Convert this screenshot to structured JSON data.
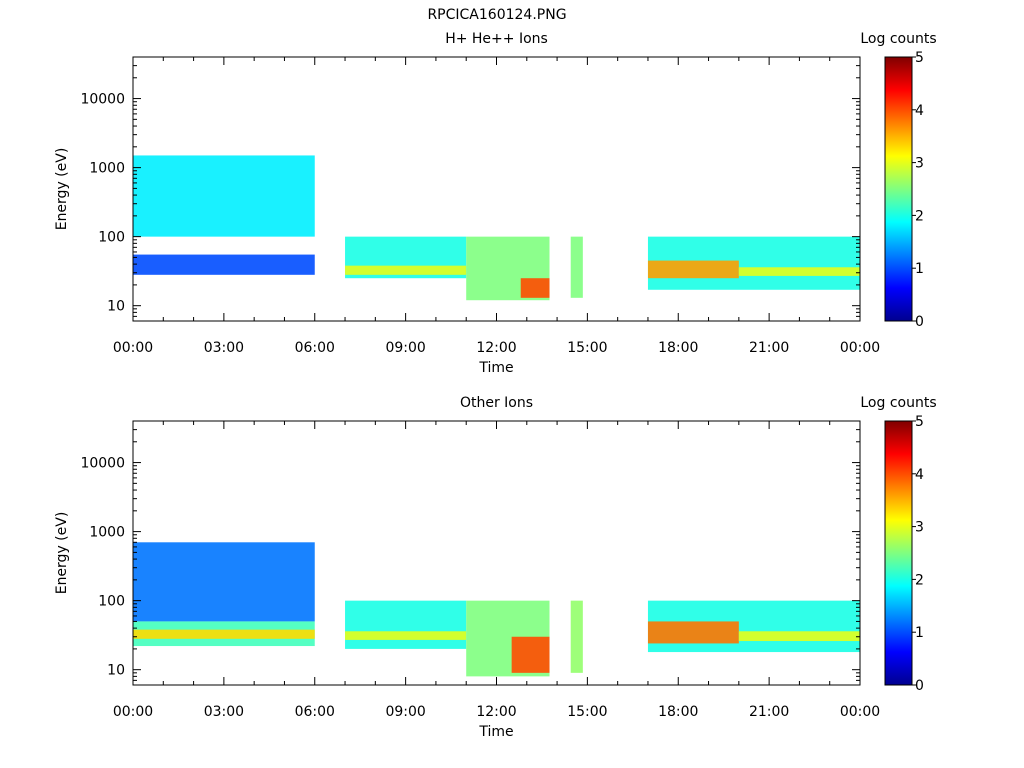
{
  "file_title": "RPCICA160124.PNG",
  "chart_data": [
    {
      "type": "heatmap",
      "title": "H+ He++ Ions",
      "xlabel": "Time",
      "ylabel": "Energy (eV)",
      "y_scale": "log",
      "ylim": [
        6,
        40000
      ],
      "xlim_hours": [
        0,
        24
      ],
      "x_ticks": [
        "00:00",
        "03:00",
        "06:00",
        "09:00",
        "12:00",
        "15:00",
        "18:00",
        "21:00",
        "00:00"
      ],
      "y_ticks": [
        "10",
        "100",
        "1000",
        "10000"
      ],
      "colorbar": {
        "label": "Log counts",
        "range": [
          0,
          5
        ],
        "ticks": [
          "0",
          "1",
          "2",
          "3",
          "4",
          "5"
        ]
      },
      "data_gaps_hours": [
        [
          6.0,
          7.0
        ],
        [
          13.75,
          14.45
        ],
        [
          14.85,
          17.0
        ]
      ],
      "blocks": [
        {
          "t_start": 0.0,
          "t_end": 6.0,
          "e_min": 100,
          "e_max": 1500,
          "level": 1.8
        },
        {
          "t_start": 0.0,
          "t_end": 6.0,
          "e_min": 28,
          "e_max": 55,
          "level": 1.0
        },
        {
          "t_start": 7.0,
          "t_end": 11.0,
          "e_min": 25,
          "e_max": 100,
          "level": 2.0
        },
        {
          "t_start": 7.0,
          "t_end": 11.0,
          "e_min": 28,
          "e_max": 38,
          "level": 3.0
        },
        {
          "t_start": 11.0,
          "t_end": 13.75,
          "e_min": 12,
          "e_max": 100,
          "level": 2.5
        },
        {
          "t_start": 12.8,
          "t_end": 13.75,
          "e_min": 13,
          "e_max": 25,
          "level": 4.0
        },
        {
          "t_start": 14.45,
          "t_end": 14.85,
          "e_min": 13,
          "e_max": 100,
          "level": 2.5
        },
        {
          "t_start": 17.0,
          "t_end": 24.0,
          "e_min": 17,
          "e_max": 100,
          "level": 2.0
        },
        {
          "t_start": 17.0,
          "t_end": 20.0,
          "e_min": 25,
          "e_max": 45,
          "level": 3.6
        },
        {
          "t_start": 20.0,
          "t_end": 24.0,
          "e_min": 27,
          "e_max": 36,
          "level": 3.0
        }
      ]
    },
    {
      "type": "heatmap",
      "title": "Other Ions",
      "xlabel": "Time",
      "ylabel": "Energy (eV)",
      "y_scale": "log",
      "ylim": [
        6,
        40000
      ],
      "xlim_hours": [
        0,
        24
      ],
      "x_ticks": [
        "00:00",
        "03:00",
        "06:00",
        "09:00",
        "12:00",
        "15:00",
        "18:00",
        "21:00",
        "00:00"
      ],
      "y_ticks": [
        "10",
        "100",
        "1000",
        "10000"
      ],
      "colorbar": {
        "label": "Log counts",
        "range": [
          0,
          5
        ],
        "ticks": [
          "0",
          "1",
          "2",
          "3",
          "4",
          "5"
        ]
      },
      "data_gaps_hours": [
        [
          6.0,
          7.0
        ],
        [
          13.75,
          14.45
        ],
        [
          14.85,
          17.0
        ]
      ],
      "blocks": [
        {
          "t_start": 0.0,
          "t_end": 6.0,
          "e_min": 50,
          "e_max": 700,
          "level": 1.2
        },
        {
          "t_start": 0.0,
          "t_end": 6.0,
          "e_min": 22,
          "e_max": 50,
          "level": 2.2
        },
        {
          "t_start": 0.0,
          "t_end": 6.0,
          "e_min": 28,
          "e_max": 38,
          "level": 3.3
        },
        {
          "t_start": 7.0,
          "t_end": 11.0,
          "e_min": 20,
          "e_max": 100,
          "level": 2.0
        },
        {
          "t_start": 7.0,
          "t_end": 11.0,
          "e_min": 27,
          "e_max": 36,
          "level": 3.0
        },
        {
          "t_start": 11.0,
          "t_end": 13.75,
          "e_min": 8,
          "e_max": 100,
          "level": 2.5
        },
        {
          "t_start": 12.5,
          "t_end": 13.75,
          "e_min": 9,
          "e_max": 30,
          "level": 4.0
        },
        {
          "t_start": 14.45,
          "t_end": 14.85,
          "e_min": 9,
          "e_max": 100,
          "level": 2.6
        },
        {
          "t_start": 17.0,
          "t_end": 24.0,
          "e_min": 18,
          "e_max": 100,
          "level": 2.0
        },
        {
          "t_start": 17.0,
          "t_end": 20.0,
          "e_min": 24,
          "e_max": 50,
          "level": 3.8
        },
        {
          "t_start": 20.0,
          "t_end": 24.0,
          "e_min": 26,
          "e_max": 36,
          "level": 3.0
        }
      ]
    }
  ]
}
